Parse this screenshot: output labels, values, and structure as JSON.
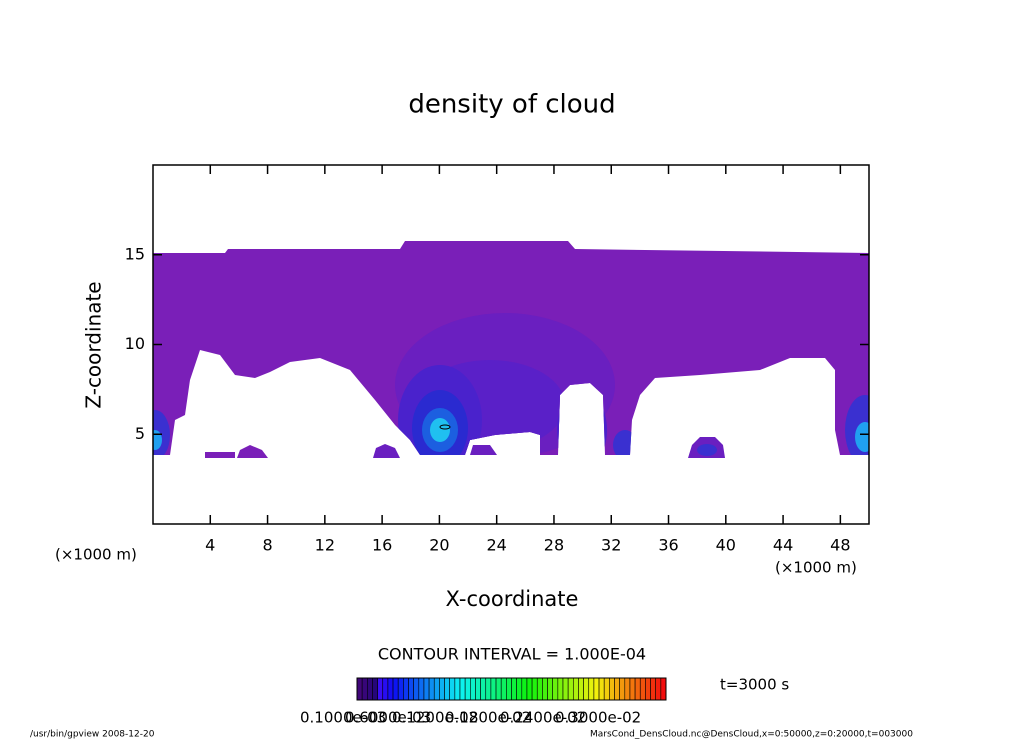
{
  "chart_data": {
    "type": "contour",
    "title": "density of cloud",
    "x_label": "X-coordinate",
    "y_label": "Z-coordinate",
    "x_unit_labels": [
      "(×1000 m)",
      "(×1000 m)"
    ],
    "xlim": [
      0,
      50
    ],
    "xticks": [
      4,
      8,
      12,
      16,
      20,
      24,
      28,
      32,
      36,
      40,
      44,
      48
    ],
    "ylim": [
      0,
      20
    ],
    "yticks": [
      5,
      10,
      15
    ],
    "contour_interval": "CONTOUR INTERVAL = 1.000E-04",
    "time_label": "t=3000 s",
    "colorbar_labels": [
      "0.1000e-03",
      "0.6000e-03",
      "0.1200e-02",
      "0.1800e-02",
      "0.2400e-02",
      "0.3000e-02"
    ],
    "footer_left": "/usr/bin/gpview  2008-12-20",
    "footer_right": "MarsCond_DensCloud.nc@DensCloud,x=0:50000,z=0:20000,t=003000"
  }
}
